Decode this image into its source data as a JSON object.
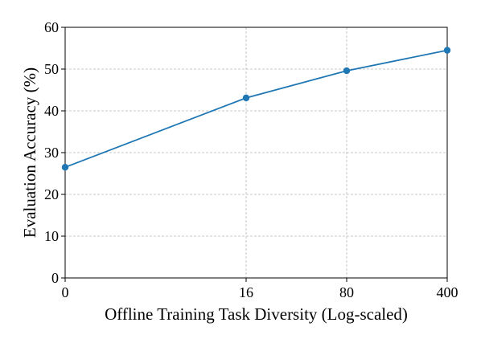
{
  "chart_data": {
    "type": "line",
    "title": "",
    "xlabel": "Offline Training Task Diversity (Log-scaled)",
    "ylabel": "Evaluation Accuracy (%)",
    "x_tick_labels": [
      "0",
      "16",
      "80",
      "400"
    ],
    "y_ticks": [
      0,
      10,
      20,
      30,
      40,
      50,
      60
    ],
    "ylim": [
      0,
      60
    ],
    "x_scale": "log-scaled",
    "grid": true,
    "legend": "none",
    "series": [
      {
        "color": "#1f77b4",
        "x": [
          "0",
          "16",
          "80",
          "400"
        ],
        "values": [
          26.5,
          43.1,
          49.6,
          54.5
        ]
      }
    ]
  }
}
